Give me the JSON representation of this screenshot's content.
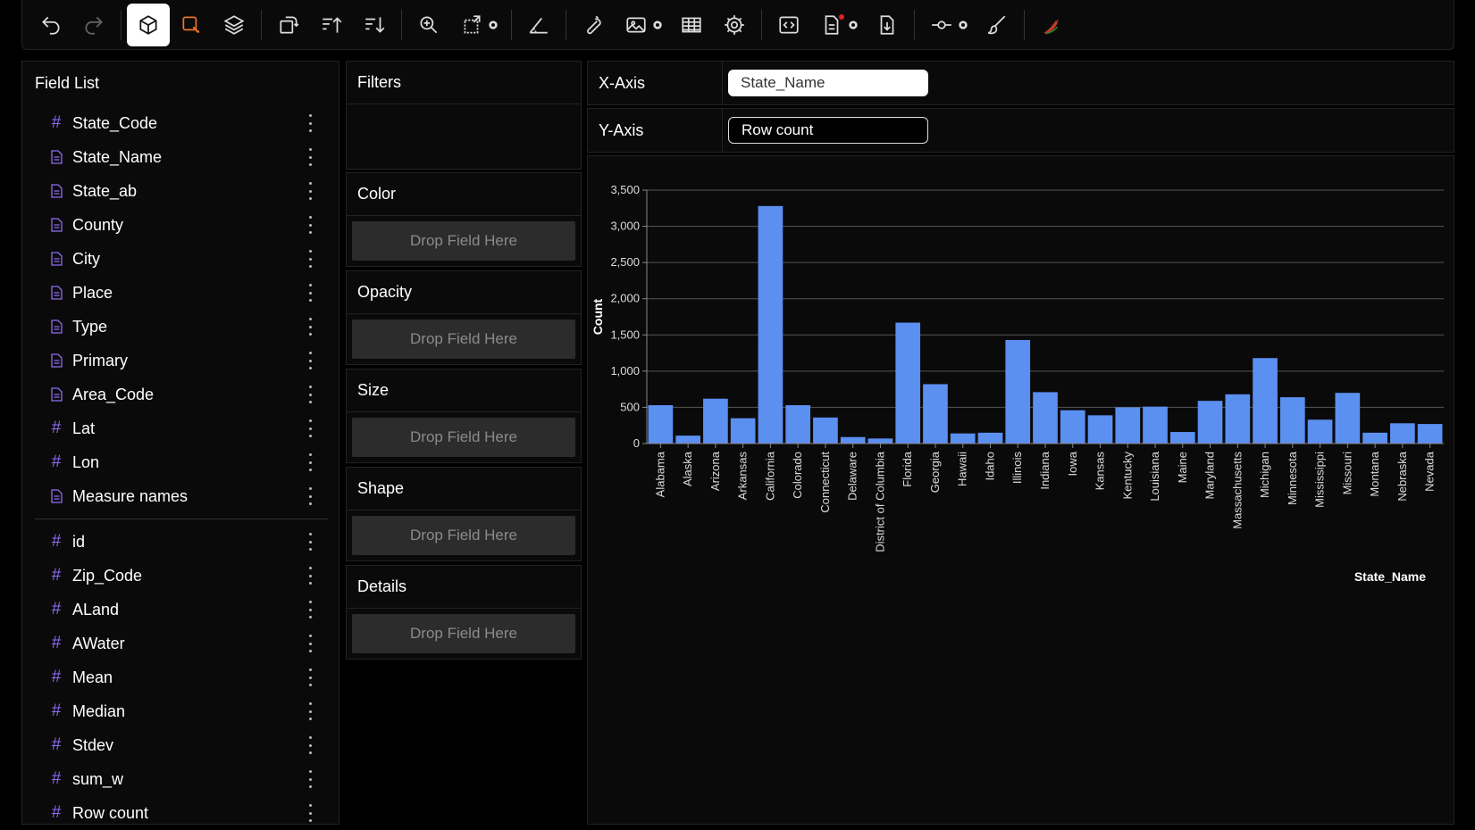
{
  "field_list": {
    "title": "Field List",
    "dimensions": [
      {
        "name": "State_Code",
        "kind": "number"
      },
      {
        "name": "State_Name",
        "kind": "text"
      },
      {
        "name": "State_ab",
        "kind": "text"
      },
      {
        "name": "County",
        "kind": "text"
      },
      {
        "name": "City",
        "kind": "text"
      },
      {
        "name": "Place",
        "kind": "text"
      },
      {
        "name": "Type",
        "kind": "text"
      },
      {
        "name": "Primary",
        "kind": "text"
      },
      {
        "name": "Area_Code",
        "kind": "text"
      },
      {
        "name": "Lat",
        "kind": "number"
      },
      {
        "name": "Lon",
        "kind": "number"
      },
      {
        "name": "Measure names",
        "kind": "text"
      }
    ],
    "measures": [
      {
        "name": "id",
        "kind": "number"
      },
      {
        "name": "Zip_Code",
        "kind": "number"
      },
      {
        "name": "ALand",
        "kind": "number"
      },
      {
        "name": "AWater",
        "kind": "number"
      },
      {
        "name": "Mean",
        "kind": "number"
      },
      {
        "name": "Median",
        "kind": "number"
      },
      {
        "name": "Stdev",
        "kind": "number"
      },
      {
        "name": "sum_w",
        "kind": "number"
      },
      {
        "name": "Row count",
        "kind": "number"
      }
    ]
  },
  "encodings": {
    "filters": {
      "label": "Filters"
    },
    "color": {
      "label": "Color",
      "drop": "Drop Field Here"
    },
    "opacity": {
      "label": "Opacity",
      "drop": "Drop Field Here"
    },
    "size": {
      "label": "Size",
      "drop": "Drop Field Here"
    },
    "shape": {
      "label": "Shape",
      "drop": "Drop Field Here"
    },
    "details": {
      "label": "Details",
      "drop": "Drop Field Here"
    }
  },
  "axes": {
    "x_label": "X-Axis",
    "x_field": "State_Name",
    "y_label": "Y-Axis",
    "y_field": "Row count"
  },
  "colors": {
    "bar": "#5b8ff0",
    "field_icon": "#8f6df0",
    "accent_orange": "#e8742a"
  },
  "chart_data": {
    "type": "bar",
    "xlabel": "State_Name",
    "ylabel": "Count",
    "ylim": [
      0,
      3500
    ],
    "yticks": [
      0,
      500,
      1000,
      1500,
      2000,
      2500,
      3000,
      3500
    ],
    "ytick_labels": [
      "0",
      "500",
      "1,000",
      "1,500",
      "2,000",
      "2,500",
      "3,000",
      "3,500"
    ],
    "categories": [
      "Alabama",
      "Alaska",
      "Arizona",
      "Arkansas",
      "California",
      "Colorado",
      "Connecticut",
      "Delaware",
      "District of Columbia",
      "Florida",
      "Georgia",
      "Hawaii",
      "Idaho",
      "Illinois",
      "Indiana",
      "Iowa",
      "Kansas",
      "Kentucky",
      "Louisiana",
      "Maine",
      "Maryland",
      "Massachusetts",
      "Michigan",
      "Minnesota",
      "Mississippi",
      "Missouri",
      "Montana",
      "Nebraska",
      "Nevada"
    ],
    "values": [
      530,
      110,
      620,
      350,
      3280,
      530,
      360,
      90,
      70,
      1670,
      820,
      140,
      150,
      1430,
      710,
      460,
      390,
      500,
      510,
      160,
      590,
      680,
      1180,
      640,
      330,
      700,
      150,
      280,
      270
    ],
    "grid": true
  }
}
